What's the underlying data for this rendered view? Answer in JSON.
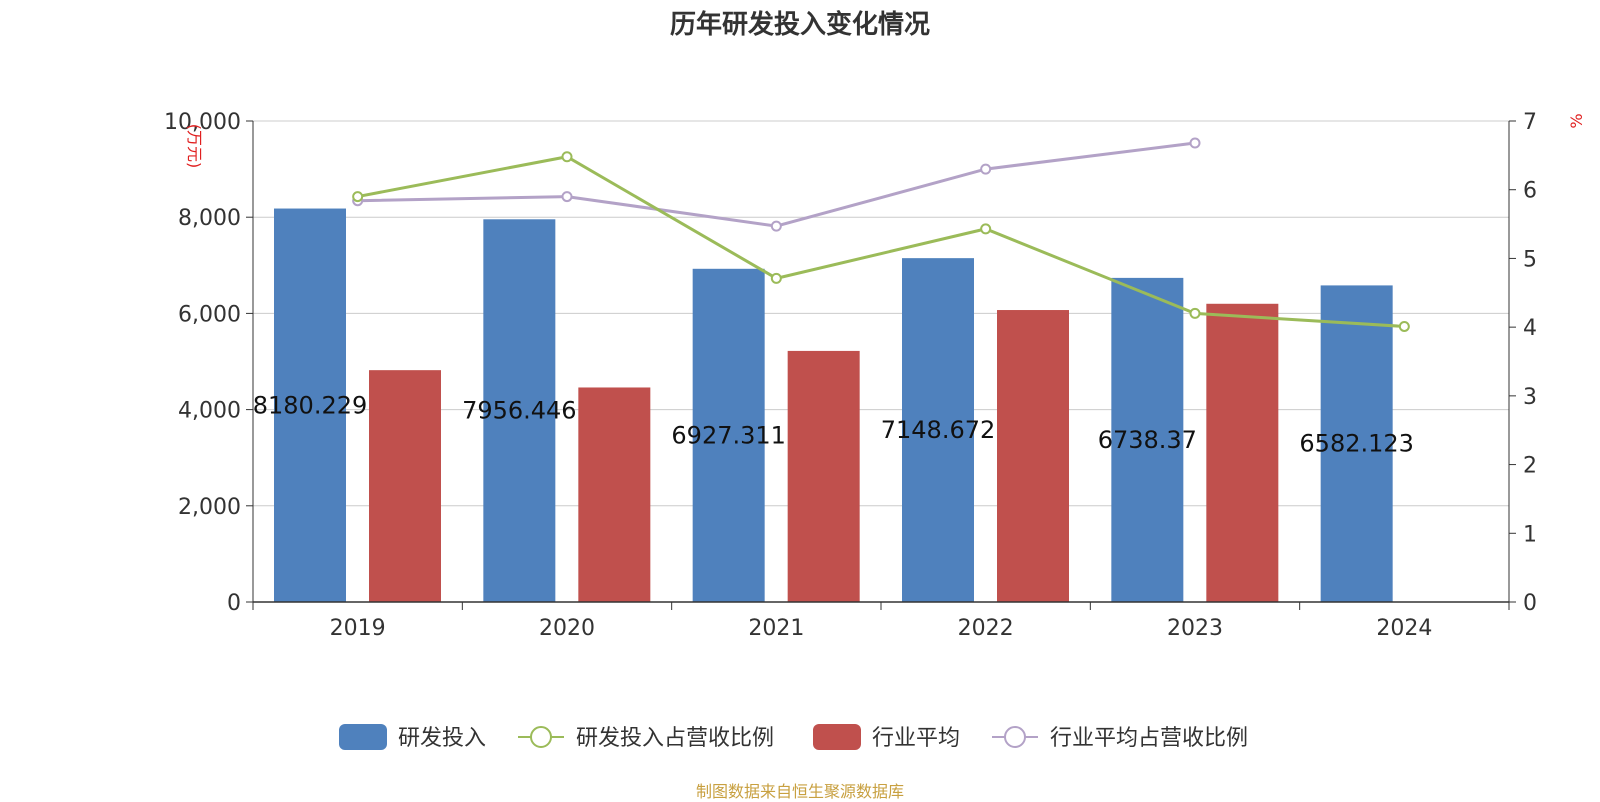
{
  "chart_data": {
    "type": "bar+line",
    "title": "历年研发投入变化情况",
    "categories": [
      "2019",
      "2020",
      "2021",
      "2022",
      "2023",
      "2024"
    ],
    "y_left": {
      "unit_label": "(万元)",
      "ylim": [
        0,
        10000
      ],
      "ticks": [
        "0",
        "2,000",
        "4,000",
        "6,000",
        "8,000",
        "10,000"
      ]
    },
    "y_right": {
      "unit_label": "%",
      "ylim": [
        0,
        7
      ],
      "ticks": [
        "0",
        "1",
        "2",
        "3",
        "4",
        "5",
        "6",
        "7"
      ]
    },
    "series": [
      {
        "name": "研发投入",
        "kind": "bar",
        "axis": "left",
        "color": "#4f81bd",
        "values": [
          8180.229,
          7956.446,
          6927.311,
          7148.672,
          6738.37,
          6582.123
        ],
        "data_labels": [
          "8180.229",
          "7956.446",
          "6927.311",
          "7148.672",
          "6738.37",
          "6582.123"
        ]
      },
      {
        "name": "行业平均",
        "kind": "bar",
        "axis": "left",
        "color": "#c0504d",
        "values": [
          4820,
          4460,
          5220,
          6070,
          6200,
          null
        ]
      },
      {
        "name": "研发投入占营收比例",
        "kind": "line",
        "axis": "right",
        "color": "#9bbb59",
        "values": [
          5.9,
          6.48,
          4.71,
          5.43,
          4.2,
          4.01
        ]
      },
      {
        "name": "行业平均占营收比例",
        "kind": "line",
        "axis": "right",
        "color": "#b3a2c7",
        "values": [
          5.84,
          5.9,
          5.47,
          6.3,
          6.68,
          null
        ]
      }
    ],
    "grid": true,
    "legend_position": "bottom"
  },
  "legend": [
    {
      "label": "研发投入",
      "kind": "bar",
      "color": "#4f81bd"
    },
    {
      "label": "研发投入占营收比例",
      "kind": "line",
      "color": "#9bbb59"
    },
    {
      "label": "行业平均",
      "kind": "bar",
      "color": "#c0504d"
    },
    {
      "label": "行业平均占营收比例",
      "kind": "line",
      "color": "#b3a2c7"
    }
  ],
  "source_text": "制图数据来自恒生聚源数据库"
}
